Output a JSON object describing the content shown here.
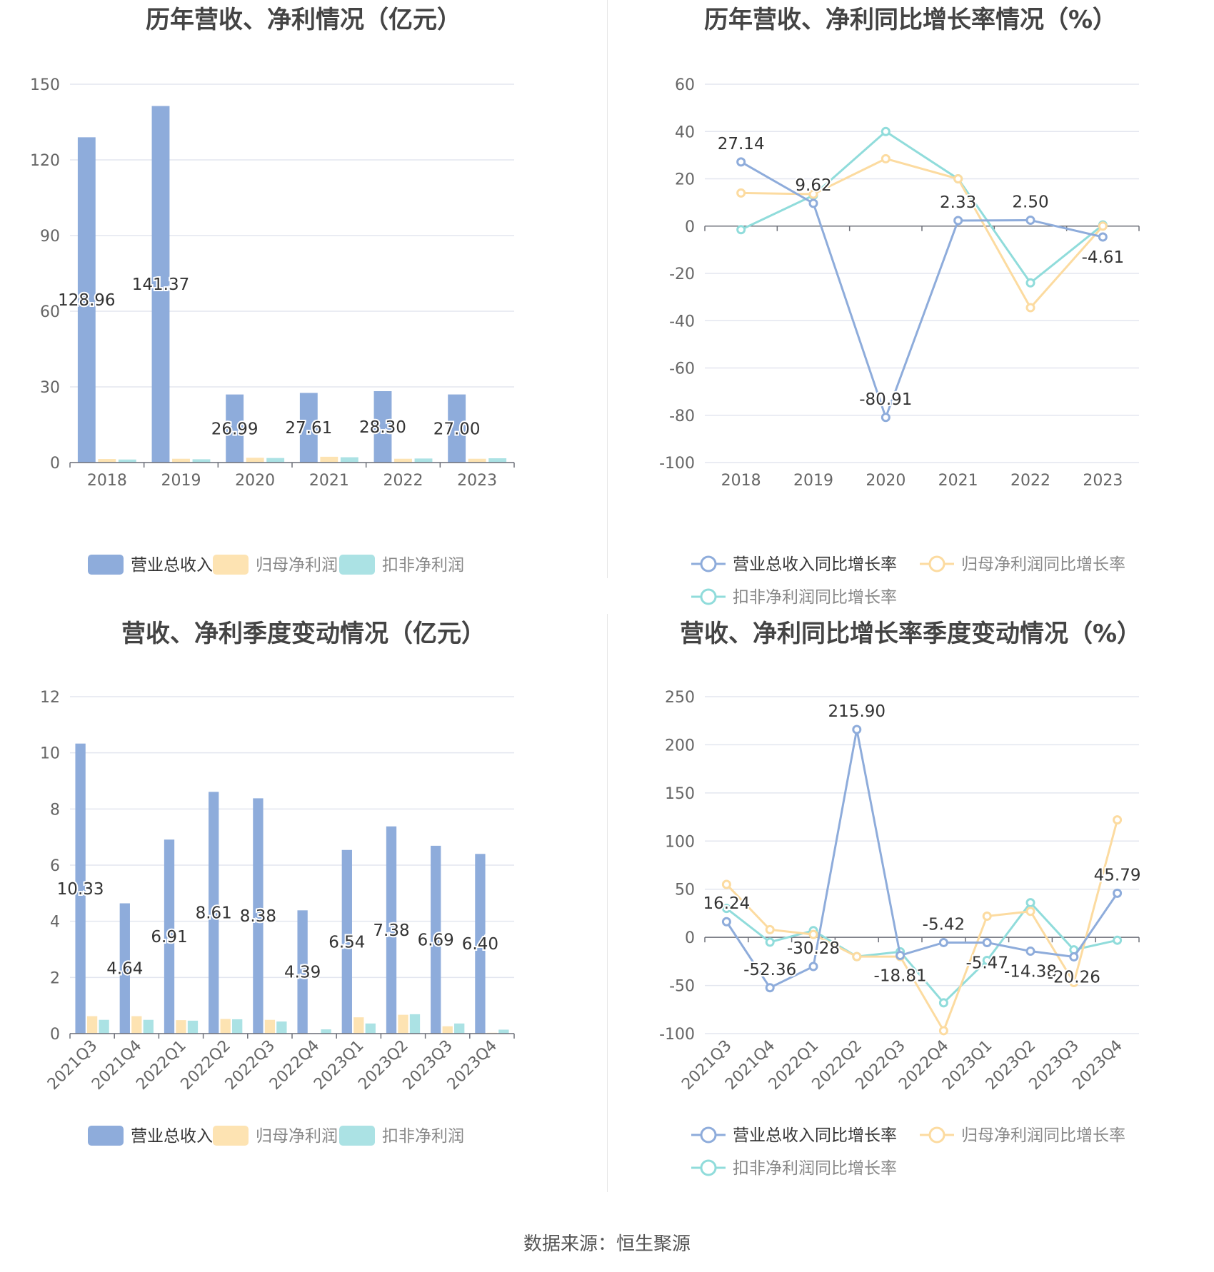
{
  "source": "数据来源：恒生聚源",
  "colors": {
    "revenue": "#8eacdb",
    "net_profit": "#fde3b2",
    "deducted": "#abe2e4",
    "revenue_line": "#8eacdb",
    "net_line": "#fcdba0",
    "deducted_line": "#90dcdb"
  },
  "chart_data": [
    {
      "type": "bar",
      "title": "历年营收、净利情况（亿元）",
      "categories": [
        "2018",
        "2019",
        "2020",
        "2021",
        "2022",
        "2023"
      ],
      "ylim": [
        0,
        150
      ],
      "yticks": [
        0,
        30,
        60,
        90,
        120,
        150
      ],
      "grid": true,
      "legend_position": "bottom",
      "series": [
        {
          "name": "营业总收入",
          "values": [
            128.96,
            141.37,
            26.99,
            27.61,
            28.3,
            27.0
          ],
          "labels": [
            "128.96",
            "141.37",
            "26.99",
            "27.61",
            "28.30",
            "27.00"
          ]
        },
        {
          "name": "归母净利润",
          "values": [
            1.4,
            1.5,
            1.9,
            2.3,
            1.5,
            1.5
          ]
        },
        {
          "name": "扣非净利润",
          "values": [
            1.2,
            1.3,
            1.8,
            2.1,
            1.6,
            1.7
          ]
        }
      ]
    },
    {
      "type": "line",
      "title": "历年营收、净利同比增长率情况（%）",
      "categories": [
        "2018",
        "2019",
        "2020",
        "2021",
        "2022",
        "2023"
      ],
      "ylim": [
        -100,
        60
      ],
      "yticks": [
        -100,
        -80,
        -60,
        -40,
        -20,
        0,
        20,
        40,
        60
      ],
      "grid": true,
      "legend_position": "bottom",
      "series": [
        {
          "name": "营业总收入同比增长率",
          "values": [
            27.14,
            9.62,
            -80.91,
            2.33,
            2.5,
            -4.61
          ],
          "labels": [
            "27.14",
            "9.62",
            "-80.91",
            "2.33",
            "2.50",
            "-4.61"
          ]
        },
        {
          "name": "归母净利润同比增长率",
          "values": [
            14,
            13.5,
            28.5,
            20,
            -34.5,
            0
          ]
        },
        {
          "name": "扣非净利润同比增长率",
          "values": [
            -1.5,
            13,
            40,
            20,
            -24,
            0.5
          ]
        }
      ]
    },
    {
      "type": "bar",
      "title": "营收、净利季度变动情况（亿元）",
      "categories": [
        "2021Q3",
        "2021Q4",
        "2022Q1",
        "2022Q2",
        "2022Q3",
        "2022Q4",
        "2023Q1",
        "2023Q2",
        "2023Q3",
        "2023Q4"
      ],
      "ylim": [
        0,
        12
      ],
      "yticks": [
        0,
        2,
        4,
        6,
        8,
        10,
        12
      ],
      "grid": true,
      "legend_position": "bottom",
      "series": [
        {
          "name": "营业总收入",
          "values": [
            10.33,
            4.64,
            6.91,
            8.61,
            8.38,
            4.39,
            6.54,
            7.38,
            6.69,
            6.4
          ],
          "labels": [
            "10.33",
            "4.64",
            "6.91",
            "8.61",
            "8.38",
            "4.39",
            "6.54",
            "7.38",
            "6.69",
            "6.40"
          ]
        },
        {
          "name": "归母净利润",
          "values": [
            0.62,
            0.62,
            0.48,
            0.52,
            0.49,
            0.01,
            0.58,
            0.67,
            0.26,
            0.03
          ]
        },
        {
          "name": "扣非净利润",
          "values": [
            0.49,
            0.49,
            0.46,
            0.51,
            0.43,
            0.15,
            0.36,
            0.69,
            0.36,
            0.14
          ]
        }
      ]
    },
    {
      "type": "line",
      "title": "营收、净利同比增长率季度变动情况（%）",
      "categories": [
        "2021Q3",
        "2021Q4",
        "2022Q1",
        "2022Q2",
        "2022Q3",
        "2022Q4",
        "2023Q1",
        "2023Q2",
        "2023Q3",
        "2023Q4"
      ],
      "ylim": [
        -100,
        250
      ],
      "yticks": [
        -100,
        -50,
        0,
        50,
        100,
        150,
        200,
        250
      ],
      "grid": true,
      "legend_position": "bottom",
      "series": [
        {
          "name": "营业总收入同比增长率",
          "values": [
            16.24,
            -52.36,
            -30.28,
            215.9,
            -18.81,
            -5.42,
            -5.47,
            -14.38,
            -20.26,
            45.79
          ],
          "labels": [
            "16.24",
            "-52.36",
            "-30.28",
            "215.90",
            "-18.81",
            "-5.42",
            "-5.47",
            "-14.38",
            "-20.26",
            "45.79"
          ]
        },
        {
          "name": "归母净利润同比增长率",
          "values": [
            55,
            8,
            3,
            -20,
            -20,
            -97,
            22,
            27,
            -47,
            122
          ]
        },
        {
          "name": "扣非净利润同比增长率",
          "values": [
            30,
            -5,
            7,
            -20,
            -15,
            -68,
            -24,
            36,
            -13,
            -3
          ]
        }
      ]
    }
  ]
}
